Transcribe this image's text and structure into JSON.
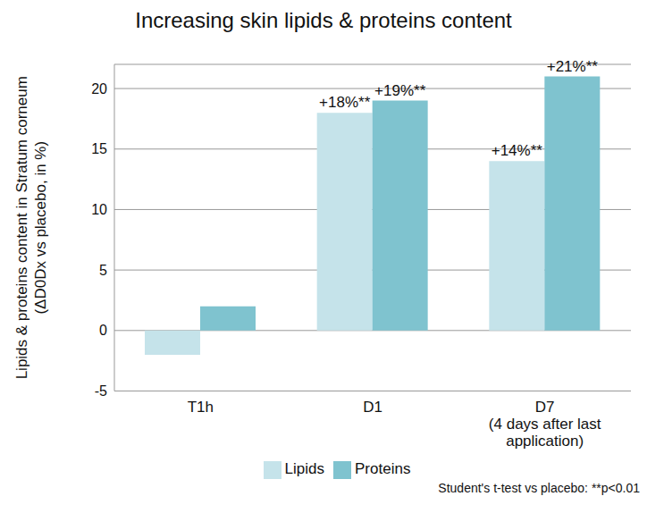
{
  "chart_data": {
    "type": "bar",
    "title": "Increasing skin lipids & proteins content",
    "ylabel": [
      "Lipids & proteins content in Stratum corneum",
      "(ΔD0Dx vs placebo, in %)"
    ],
    "categories": [
      "T1h",
      "D1",
      "D7\n(4 days after last\napplication)"
    ],
    "series": [
      {
        "name": "Lipids",
        "color": "#c5e3ea",
        "values": [
          -2,
          18,
          14
        ],
        "value_labels": [
          null,
          "+18%**",
          "+14%**"
        ]
      },
      {
        "name": "Proteins",
        "color": "#7fc3cf",
        "values": [
          2,
          19,
          21
        ],
        "value_labels": [
          null,
          "+19%**",
          "+21%**"
        ]
      }
    ],
    "ylim": [
      -5,
      22
    ],
    "yticks": [
      -5,
      0,
      5,
      10,
      15,
      20
    ],
    "grid": true,
    "legend": "bottom",
    "data_labels": true,
    "footnote": "Student's t-test vs placebo: **p<0.01"
  }
}
